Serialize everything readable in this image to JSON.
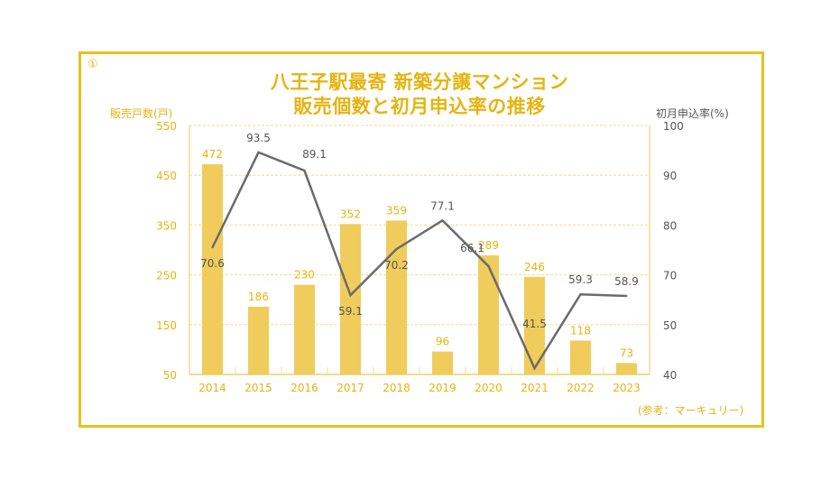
{
  "figure_number": "①",
  "source_note": "(参考：マーキュリー)",
  "colors": {
    "frame": "#e8c11c",
    "accent": "#e6b412",
    "bar": "#efcc5c",
    "line": "#6b6b6b",
    "grid": "#f3dc8a"
  },
  "chart_data": {
    "type": "bar+line",
    "title": "八王子駅最寄 新築分譲マンション",
    "subtitle": "販売個数と初月申込率の推移",
    "ylabel_left": "販売戸数(戸)",
    "ylabel_right": "初月申込率(%)",
    "categories": [
      "2014",
      "2015",
      "2016",
      "2017",
      "2018",
      "2019",
      "2020",
      "2021",
      "2022",
      "2023"
    ],
    "series": [
      {
        "name": "販売戸数",
        "type": "bar",
        "axis": "left",
        "values": [
          472,
          186,
          230,
          352,
          359,
          96,
          289,
          246,
          118,
          73
        ]
      },
      {
        "name": "初月申込率",
        "type": "line",
        "axis": "right",
        "values": [
          70.6,
          93.5,
          89.1,
          59.1,
          70.2,
          77.1,
          66.1,
          41.5,
          59.3,
          58.9
        ]
      }
    ],
    "ylim_left": [
      50,
      550
    ],
    "yticks_left": [
      "550",
      "450",
      "350",
      "250",
      "150",
      "50"
    ],
    "ylim_right": [
      40,
      100
    ],
    "yticks_right": [
      "100",
      "90",
      "80",
      "70",
      "50",
      "40"
    ],
    "grid": true
  }
}
